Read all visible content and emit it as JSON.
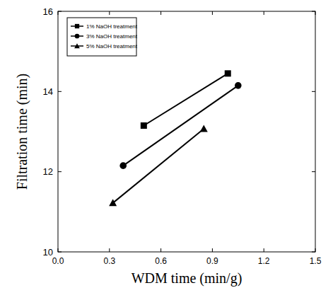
{
  "chart_data": {
    "type": "line",
    "x_label": "WDM time (min/g)",
    "y_label": "Filtration time (min)",
    "xlim": [
      0,
      1.5
    ],
    "xticks": [
      {
        "value": 0,
        "label": "0.0"
      },
      0.3,
      0.6,
      0.9,
      1.2,
      1.5
    ],
    "ylim": [
      10,
      16
    ],
    "yticks": [
      10,
      12,
      14,
      16
    ],
    "grid": false,
    "legend": "upper left",
    "series": [
      {
        "name": "1% NaOH treatment",
        "color": "#000000",
        "marker": "square",
        "x": [
          0.5,
          0.99
        ],
        "values": [
          13.15,
          14.45
        ]
      },
      {
        "name": "3% NaOH treatment",
        "color": "#000000",
        "marker": "circle",
        "x": [
          0.38,
          1.05
        ],
        "values": [
          12.15,
          14.15
        ]
      },
      {
        "name": "5% NaOH treatment",
        "color": "#000000",
        "marker": "triangle",
        "x": [
          0.32,
          0.85
        ],
        "values": [
          11.22,
          13.07
        ]
      }
    ]
  }
}
